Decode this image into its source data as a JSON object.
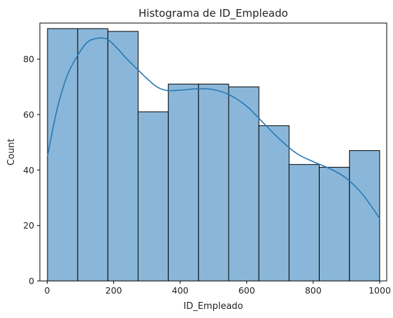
{
  "chart_data": {
    "type": "bar",
    "title": "Histograma de ID_Empleado",
    "xlabel": "ID_Empleado",
    "ylabel": "Count",
    "xlim": [
      -22,
      1021
    ],
    "ylim": [
      0,
      93
    ],
    "xticks": [
      0,
      200,
      400,
      600,
      800,
      1000
    ],
    "yticks": [
      0,
      20,
      40,
      60,
      80
    ],
    "bin_edges": [
      1,
      91.8,
      182.6,
      273.4,
      364.2,
      455,
      545.8,
      636.6,
      727.4,
      818.2,
      909,
      999.8
    ],
    "values": [
      91,
      91,
      90,
      61,
      71,
      71,
      70,
      56,
      42,
      41,
      47
    ],
    "bar_color": "#8ab7d9",
    "bar_edge_color": "#000000",
    "kde": {
      "color": "#2878b5",
      "x": [
        1,
        30,
        60,
        90,
        120,
        150,
        180,
        210,
        240,
        270,
        300,
        330,
        360,
        400,
        450,
        500,
        550,
        600,
        650,
        700,
        750,
        800,
        850,
        900,
        950,
        1000
      ],
      "y": [
        45,
        62,
        74,
        81,
        86,
        87.5,
        87.2,
        84,
        80,
        76.5,
        73,
        70,
        68.7,
        68.8,
        69.3,
        69,
        67,
        63,
        57,
        51,
        46,
        43,
        40.5,
        37,
        31,
        22.5
      ]
    },
    "grid": false,
    "legend": "none"
  }
}
